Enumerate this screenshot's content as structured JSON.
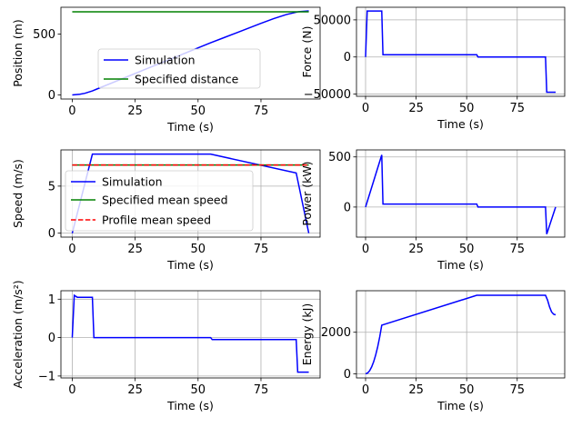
{
  "chart_data": [
    {
      "id": "position",
      "type": "line",
      "xlabel": "Time (s)",
      "ylabel": "Position (m)",
      "xlim": [
        -4.5,
        98.5
      ],
      "ylim": [
        -34,
        720
      ],
      "xticks": [
        0,
        25,
        50,
        75
      ],
      "yticks": [
        0,
        500
      ],
      "grid": false,
      "legend": {
        "placement": "lower-right"
      },
      "series": [
        {
          "name": "Simulation",
          "color": "#0000ff",
          "style": "solid",
          "x": [
            0,
            3,
            5,
            8,
            10,
            15,
            20,
            25,
            30,
            35,
            40,
            45,
            50,
            55,
            60,
            65,
            70,
            75,
            80,
            85,
            90,
            94
          ],
          "y": [
            0,
            5,
            13,
            33,
            50,
            92,
            134,
            176,
            218,
            260,
            302,
            344,
            386,
            428,
            468,
            508,
            548,
            588,
            626,
            660,
            684,
            690
          ]
        },
        {
          "name": "Specified distance",
          "color": "#008000",
          "style": "solid",
          "x": [
            0,
            94
          ],
          "y": [
            683,
            683
          ]
        }
      ]
    },
    {
      "id": "force",
      "type": "line",
      "xlabel": "Time (s)",
      "ylabel": "Force (N)",
      "xlim": [
        -4.5,
        98.5
      ],
      "ylim": [
        -53000,
        67000
      ],
      "xticks": [
        0,
        25,
        50,
        75
      ],
      "yticks": [
        -50000,
        0,
        50000
      ],
      "grid": true,
      "series": [
        {
          "name": "Force",
          "color": "#0000ff",
          "style": "solid",
          "x": [
            0,
            0.8,
            8,
            8.6,
            55,
            55.6,
            89,
            89.6,
            94
          ],
          "y": [
            0,
            62000,
            62000,
            3000,
            3000,
            0,
            0,
            -47500,
            -47500
          ]
        }
      ]
    },
    {
      "id": "speed",
      "type": "line",
      "xlabel": "Time (s)",
      "ylabel": "Speed (m/s)",
      "xlim": [
        -4.5,
        98.5
      ],
      "ylim": [
        -0.42,
        8.85
      ],
      "xticks": [
        0,
        25,
        50,
        75
      ],
      "yticks": [
        0,
        5
      ],
      "grid": true,
      "legend": {
        "placement": "lower-left"
      },
      "series": [
        {
          "name": "Simulation",
          "color": "#0000ff",
          "style": "solid",
          "x": [
            0,
            8,
            55,
            89,
            94
          ],
          "y": [
            0,
            8.4,
            8.4,
            6.4,
            0
          ]
        },
        {
          "name": "Specified mean speed",
          "color": "#008000",
          "style": "solid",
          "x": [
            0,
            94
          ],
          "y": [
            7.25,
            7.25
          ]
        },
        {
          "name": "Profile mean speed",
          "color": "#ff0000",
          "style": "dashed",
          "x": [
            0,
            94
          ],
          "y": [
            7.25,
            7.25
          ]
        }
      ]
    },
    {
      "id": "power",
      "type": "line",
      "xlabel": "Time (s)",
      "ylabel": "Power (kW)",
      "xlim": [
        -4.5,
        98.5
      ],
      "ylim": [
        -300,
        570
      ],
      "xticks": [
        0,
        25,
        50,
        75
      ],
      "yticks": [
        0,
        500
      ],
      "grid": true,
      "series": [
        {
          "name": "Power",
          "color": "#0000ff",
          "style": "solid",
          "x": [
            0,
            8,
            8.6,
            55,
            55.6,
            89,
            89.6,
            94
          ],
          "y": [
            0,
            520,
            30,
            30,
            0,
            0,
            -270,
            0
          ]
        }
      ]
    },
    {
      "id": "acceleration",
      "type": "line",
      "xlabel": "Time (s)",
      "ylabel": "Acceleration (m/s²)",
      "xlim": [
        -4.5,
        98.5
      ],
      "ylim": [
        -1.05,
        1.22
      ],
      "xticks": [
        0,
        25,
        50,
        75
      ],
      "yticks": [
        -1,
        0,
        1
      ],
      "grid": true,
      "series": [
        {
          "name": "Acceleration",
          "color": "#0000ff",
          "style": "solid",
          "x": [
            0,
            0.8,
            2,
            8,
            8.6,
            55,
            55.6,
            89,
            89.6,
            94
          ],
          "y": [
            0,
            1.1,
            1.05,
            1.05,
            0,
            0,
            -0.05,
            -0.05,
            -0.9,
            -0.9
          ]
        }
      ]
    },
    {
      "id": "energy",
      "type": "line",
      "xlabel": "Time (s)",
      "ylabel": "Energy (kJ)",
      "xlim": [
        -4.5,
        98.5
      ],
      "ylim": [
        -200,
        4000
      ],
      "xticks": [
        0,
        25,
        50,
        75
      ],
      "yticks": [
        0,
        2000
      ],
      "grid": true,
      "series": [
        {
          "name": "Energy",
          "color": "#0000ff",
          "style": "solid",
          "x": [
            0,
            1,
            2,
            3,
            4,
            5,
            6,
            7,
            8,
            55,
            89,
            90,
            91,
            92,
            93,
            94
          ],
          "y": [
            0,
            36,
            145,
            330,
            580,
            905,
            1300,
            1780,
            2340,
            3780,
            3780,
            3550,
            3220,
            2980,
            2870,
            2840
          ]
        }
      ]
    }
  ]
}
